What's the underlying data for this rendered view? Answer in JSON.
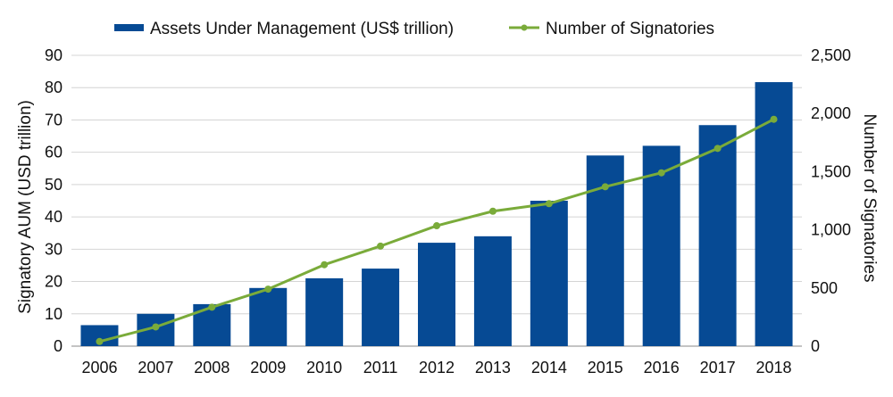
{
  "chart_data": {
    "type": "bar+line",
    "categories": [
      "2006",
      "2007",
      "2008",
      "2009",
      "2010",
      "2011",
      "2012",
      "2013",
      "2014",
      "2015",
      "2016",
      "2017",
      "2018"
    ],
    "series": [
      {
        "name": "Assets Under Management (US$ trillion)",
        "type": "bar",
        "axis": "left",
        "color": "#064a94",
        "values": [
          6.5,
          10,
          13,
          18,
          21,
          24,
          32,
          34,
          45,
          59,
          62,
          68.4,
          81.7
        ]
      },
      {
        "name": "Number of Signatories",
        "type": "line",
        "axis": "right",
        "color": "#7aab3a",
        "values": [
          40,
          165,
          335,
          490,
          700,
          860,
          1035,
          1160,
          1225,
          1370,
          1490,
          1700,
          1950
        ]
      }
    ],
    "y_left": {
      "label": "Signatory  AUM (USD trillion)",
      "range": [
        0,
        90
      ],
      "ticks": [
        "0",
        "10",
        "20",
        "30",
        "40",
        "50",
        "60",
        "70",
        "80",
        "90"
      ]
    },
    "y_right": {
      "label": "Number of Signatories",
      "range": [
        0,
        2500
      ],
      "ticks": [
        "0",
        "500",
        "1,000",
        "1,500",
        "2,000",
        "2,500"
      ]
    },
    "grid": true,
    "legend_position": "top-center"
  }
}
